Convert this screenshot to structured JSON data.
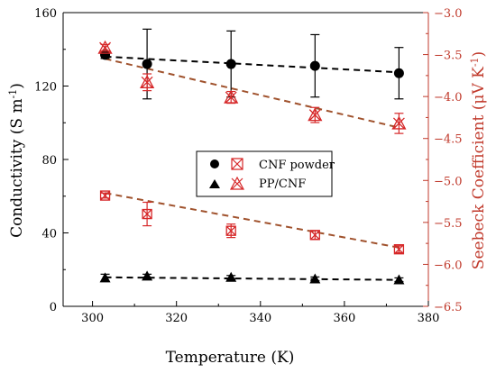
{
  "chart_data": {
    "type": "scatter",
    "x_axis": {
      "label": "Temperature (K)",
      "range": [
        293,
        380
      ],
      "ticks": [
        300,
        320,
        340,
        360,
        380
      ]
    },
    "y_axis_left": {
      "label_main": "Conductivity (S m",
      "label_sup": "-1",
      "label_end": ")",
      "range": [
        0,
        160
      ],
      "ticks": [
        0,
        40,
        80,
        120,
        160
      ],
      "color": "#000000"
    },
    "y_axis_right": {
      "label_main": "Seebeck Coefficient (μV K",
      "label_sup": "-1",
      "label_end": ")",
      "range": [
        -6.5,
        -3.0
      ],
      "ticks": [
        -6.5,
        -6.0,
        -5.5,
        -5.0,
        -4.5,
        -4.0,
        -3.5,
        -3.0
      ],
      "tick_labels": [
        "−6.5",
        "−6.0",
        "−5.5",
        "−5.0",
        "−4.5",
        "−4.0",
        "−3.5",
        "−3.0"
      ],
      "color": "#c0392b"
    },
    "series": [
      {
        "name": "CNF powder",
        "axis": "left",
        "marker": "circle",
        "color": "#000000",
        "x": [
          303,
          313,
          333,
          353,
          373
        ],
        "y": [
          137,
          132,
          132,
          131,
          127
        ],
        "err": [
          2,
          19,
          18,
          17,
          14
        ],
        "fit": [
          136,
          127.5
        ]
      },
      {
        "name": "PP/CNF",
        "axis": "left",
        "marker": "triangle",
        "color": "#000000",
        "x": [
          303,
          313,
          333,
          353,
          373
        ],
        "y": [
          15.5,
          16.5,
          15.8,
          15,
          14.5
        ],
        "err": [
          2,
          1,
          1,
          1,
          1
        ],
        "fit": [
          15.8,
          14.4
        ]
      },
      {
        "name": "CNF powder Seebeck",
        "axis": "right",
        "marker": "boxed-x",
        "color": "#d62728",
        "x": [
          303,
          313,
          333,
          353,
          373
        ],
        "y": [
          -5.18,
          -5.4,
          -5.6,
          -5.65,
          -5.82
        ],
        "err": [
          0.03,
          0.14,
          0.08,
          0.05,
          0.04
        ],
        "fit": [
          -5.15,
          -5.8
        ]
      },
      {
        "name": "PP/CNF Seebeck",
        "axis": "right",
        "marker": "triangle-x",
        "color": "#d62728",
        "x": [
          303,
          313,
          333,
          353,
          373
        ],
        "y": [
          -3.42,
          -3.83,
          -4.01,
          -4.22,
          -4.32
        ],
        "err": [
          0.04,
          0.1,
          0.07,
          0.09,
          0.12
        ],
        "fit": [
          -3.55,
          -4.37
        ]
      }
    ],
    "legend": {
      "position": "right-center",
      "entries": [
        "CNF powder",
        "PP/CNF"
      ]
    }
  }
}
